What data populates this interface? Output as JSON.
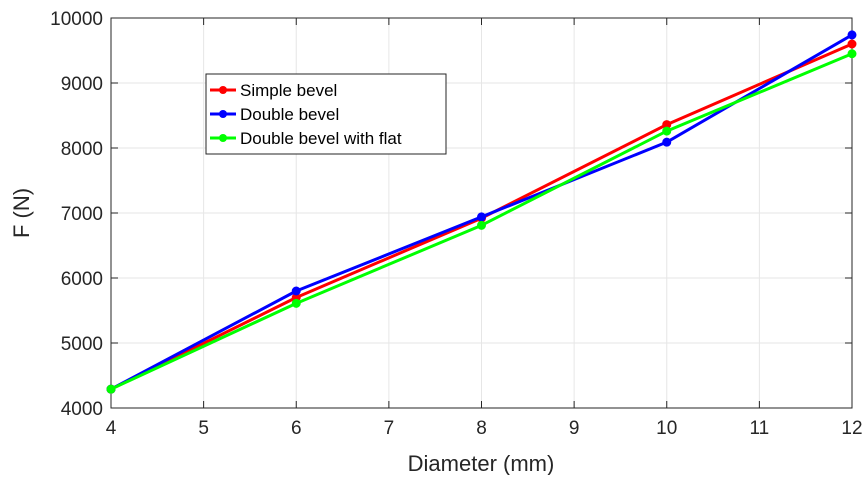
{
  "chart_data": {
    "type": "line",
    "title": "",
    "xlabel": "Diameter (mm)",
    "ylabel": "F (N)",
    "xlim": [
      4,
      12
    ],
    "ylim": [
      4000,
      10000
    ],
    "xticks": [
      4,
      5,
      6,
      7,
      8,
      9,
      10,
      11,
      12
    ],
    "yticks": [
      4000,
      5000,
      6000,
      7000,
      8000,
      9000,
      10000
    ],
    "grid": true,
    "legend_position": "upper-left",
    "x": [
      4,
      6,
      8,
      10,
      12
    ],
    "series": [
      {
        "name": "Simple bevel",
        "color": "#ff0000",
        "values": [
          4290,
          5700,
          6920,
          8360,
          9600
        ]
      },
      {
        "name": "Double bevel",
        "color": "#0000ff",
        "values": [
          4290,
          5800,
          6940,
          8090,
          9740
        ]
      },
      {
        "name": "Double bevel with flat",
        "color": "#00ff00",
        "values": [
          4290,
          5610,
          6810,
          8260,
          9450
        ]
      }
    ]
  }
}
